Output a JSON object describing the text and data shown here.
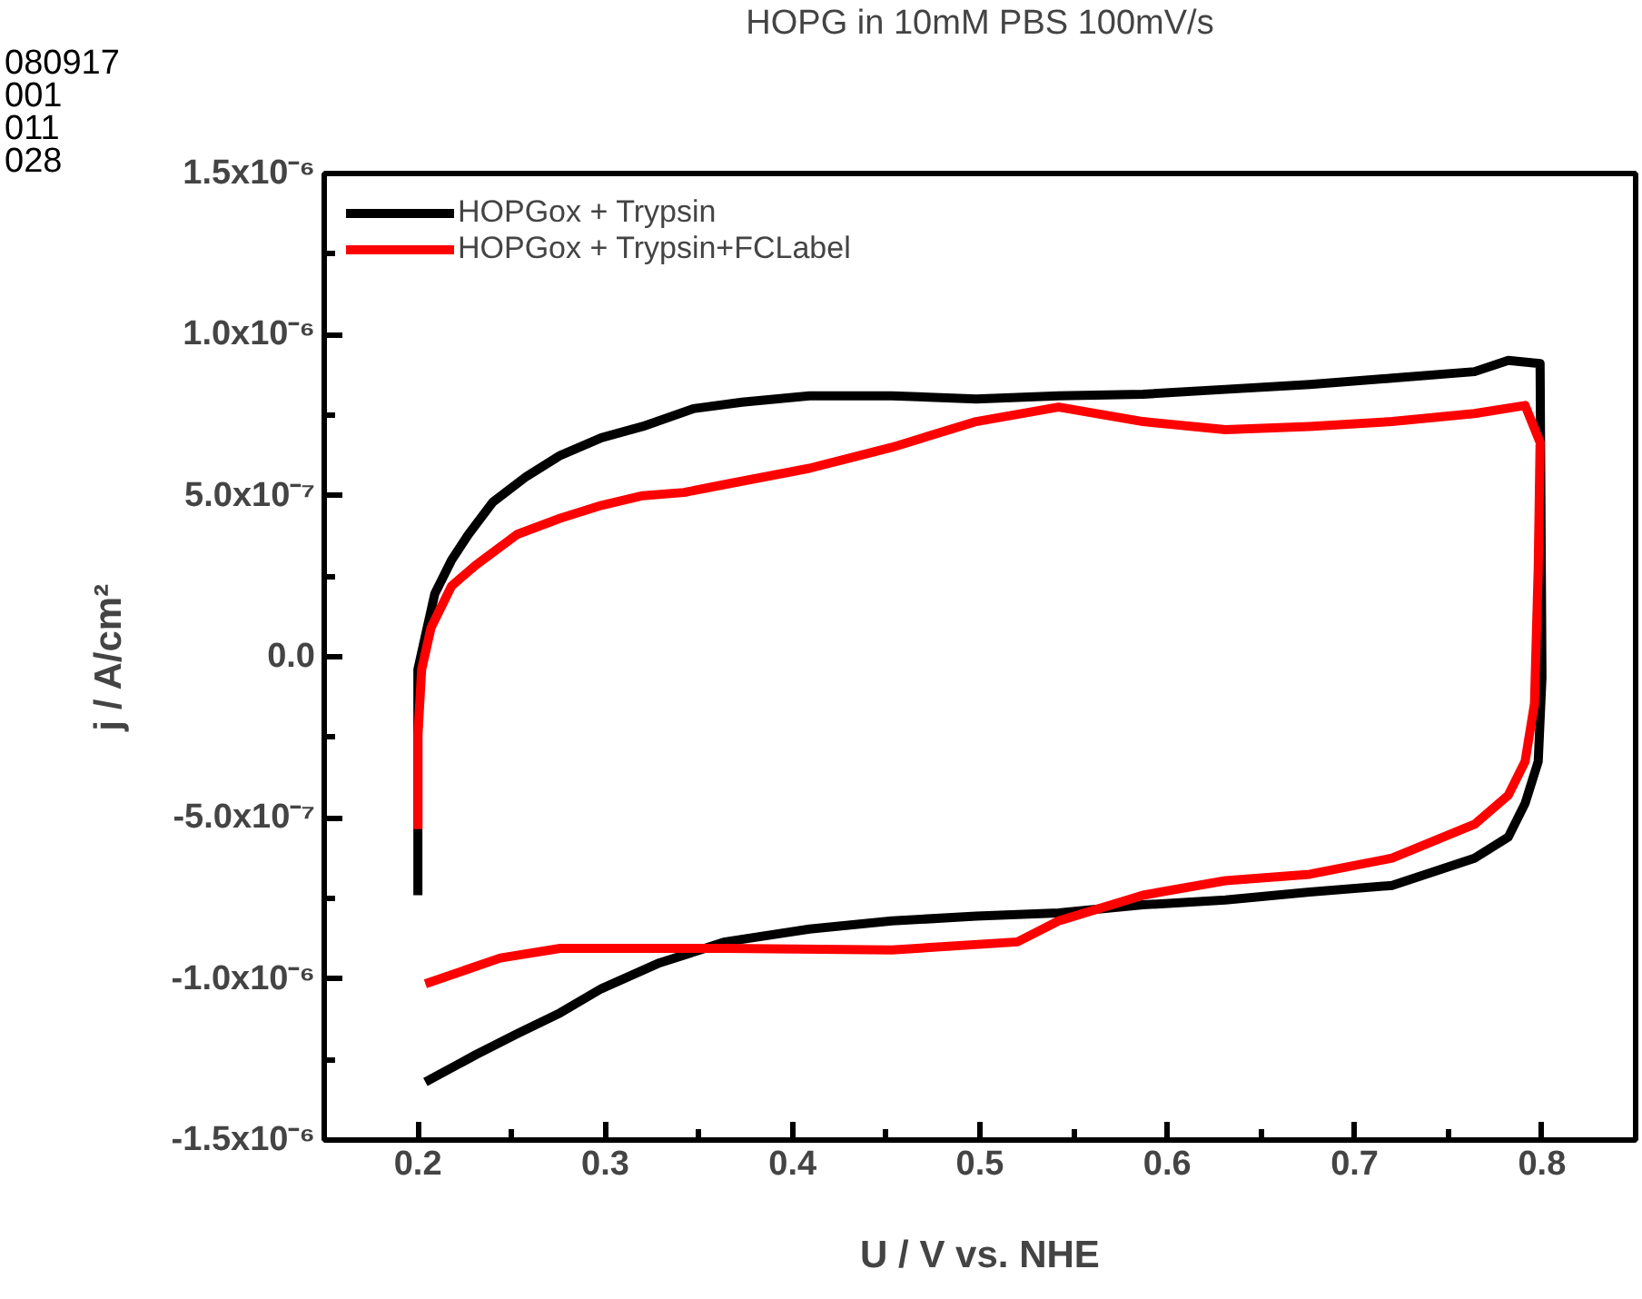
{
  "chart_data": {
    "type": "line",
    "title": "HOPG in 10mM PBS 100mV/s",
    "xlabel": "U / V vs. NHE",
    "ylabel": "j / A/cm²",
    "annotations": [
      "080917",
      "001",
      "011",
      "028"
    ],
    "xlim": [
      0.15,
      0.85
    ],
    "xticks": [
      0.2,
      0.3,
      0.4,
      0.5,
      0.6,
      0.7,
      0.8
    ],
    "ylim": [
      -1.5e-06,
      1.5e-06
    ],
    "yticks": [
      {
        "value": -1.5e-06,
        "label": "-1.5x10⁻⁶"
      },
      {
        "value": -1e-06,
        "label": "-1.0x10⁻⁶"
      },
      {
        "value": -5e-07,
        "label": "-5.0x10⁻⁷"
      },
      {
        "value": 0,
        "label": "0.0"
      },
      {
        "value": 5e-07,
        "label": "5.0x10⁻⁷"
      },
      {
        "value": 1e-06,
        "label": "1.0x10⁻⁶"
      },
      {
        "value": 1.5e-06,
        "label": "1.5x10⁻⁶"
      }
    ],
    "grid": false,
    "legend": "top left",
    "marker": "none",
    "line_style": "solid",
    "series": [
      {
        "name": "HOPGox + Trypsin",
        "color": "#000000",
        "x": [
          0.2,
          0.2,
          0.204,
          0.209,
          0.218,
          0.227,
          0.24,
          0.258,
          0.276,
          0.298,
          0.32,
          0.347,
          0.373,
          0.409,
          0.453,
          0.498,
          0.542,
          0.587,
          0.631,
          0.676,
          0.72,
          0.764,
          0.782,
          0.799,
          0.8,
          0.798,
          0.791,
          0.782,
          0.764,
          0.72,
          0.676,
          0.631,
          0.587,
          0.542,
          0.498,
          0.453,
          0.409,
          0.364,
          0.329,
          0.298,
          0.276,
          0.253,
          0.231,
          0.204
        ],
        "values": [
          -7.4e-07,
          -4e-08,
          6.5e-08,
          1.95e-07,
          3e-07,
          3.8e-07,
          4.8e-07,
          5.6e-07,
          6.25e-07,
          6.8e-07,
          7.15e-07,
          7.7e-07,
          7.9e-07,
          8.1e-07,
          8.1e-07,
          8e-07,
          8.1e-07,
          8.15e-07,
          8.3e-07,
          8.45e-07,
          8.65e-07,
          8.85e-07,
          9.2e-07,
          9.1e-07,
          -6.5e-08,
          -3.25e-07,
          -4.55e-07,
          -5.6e-07,
          -6.25e-07,
          -7.1e-07,
          -7.3e-07,
          -7.55e-07,
          -7.7e-07,
          -7.95e-07,
          -8.05e-07,
          -8.2e-07,
          -8.45e-07,
          -8.85e-07,
          -9.5e-07,
          -1.03e-06,
          -1.105e-06,
          -1.17e-06,
          -1.235e-06,
          -1.32e-06
        ]
      },
      {
        "name": "HOPGox + Trypsin+FCLabel",
        "color": "#ff0000",
        "x": [
          0.2,
          0.2,
          0.202,
          0.207,
          0.218,
          0.231,
          0.253,
          0.276,
          0.298,
          0.32,
          0.342,
          0.364,
          0.409,
          0.453,
          0.498,
          0.542,
          0.587,
          0.631,
          0.676,
          0.72,
          0.764,
          0.791,
          0.799,
          0.798,
          0.796,
          0.791,
          0.782,
          0.764,
          0.72,
          0.676,
          0.631,
          0.587,
          0.542,
          0.52,
          0.453,
          0.364,
          0.32,
          0.276,
          0.244,
          0.204
        ],
        "values": [
          -5.35e-07,
          -2.45e-07,
          -4e-08,
          9e-08,
          2.2e-07,
          2.85e-07,
          3.8e-07,
          4.3e-07,
          4.7e-07,
          5e-07,
          5.1e-07,
          5.35e-07,
          5.85e-07,
          6.5e-07,
          7.3e-07,
          7.75e-07,
          7.3e-07,
          7.05e-07,
          7.15e-07,
          7.3e-07,
          7.55e-07,
          7.8e-07,
          6.65e-07,
          2.75e-07,
          -1.45e-07,
          -3.25e-07,
          -4.3e-07,
          -5.2e-07,
          -6.25e-07,
          -6.75e-07,
          -6.95e-07,
          -7.4e-07,
          -8.2e-07,
          -8.85e-07,
          -9.1e-07,
          -9.05e-07,
          -9.05e-07,
          -9.05e-07,
          -9.35e-07,
          -1.015e-06
        ]
      }
    ]
  }
}
